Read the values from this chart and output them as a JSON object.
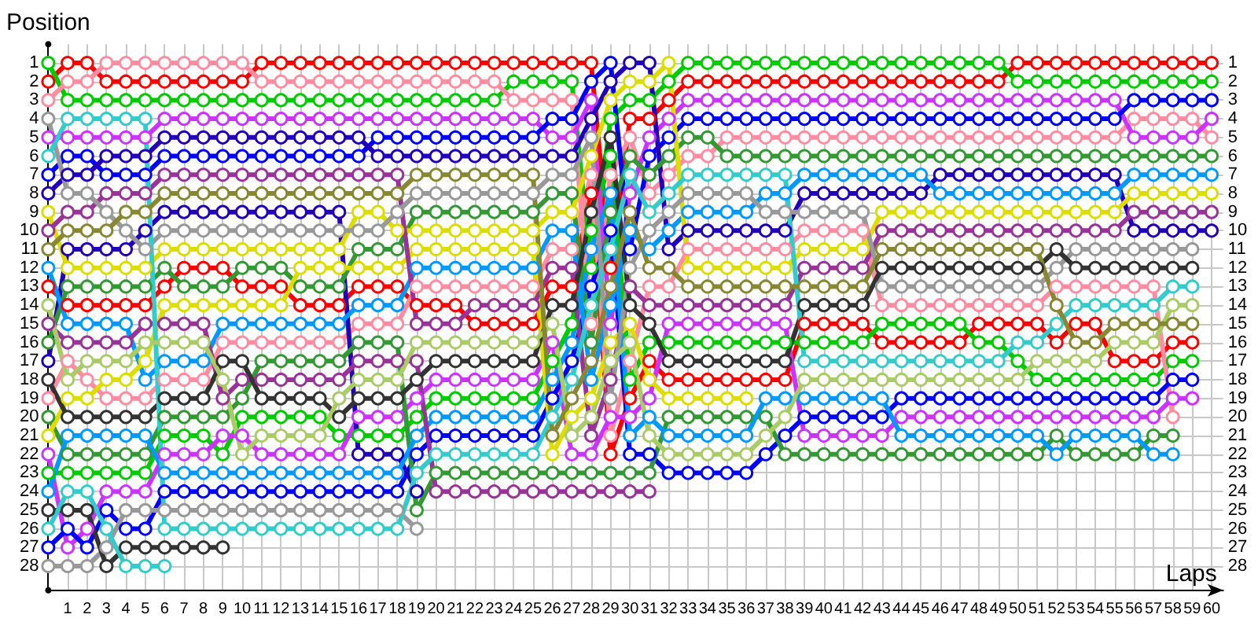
{
  "chart_data": {
    "type": "line",
    "xlabel": "Laps",
    "ylabel": "Position",
    "x": [
      0,
      1,
      2,
      3,
      4,
      5,
      6,
      7,
      8,
      9,
      10,
      11,
      12,
      13,
      14,
      15,
      16,
      17,
      18,
      19,
      20,
      21,
      22,
      23,
      24,
      25,
      26,
      27,
      28,
      29,
      30,
      31,
      32,
      33,
      34,
      35,
      36,
      37,
      38,
      39,
      40,
      41,
      42,
      43,
      44,
      45,
      46,
      47,
      48,
      49,
      50,
      51,
      52,
      53,
      54,
      55,
      56,
      57,
      58,
      59,
      60
    ],
    "series": [
      {
        "color": "#ff0000",
        "values": [
          2,
          1,
          1,
          2,
          2,
          2,
          2,
          2,
          2,
          2,
          2,
          1,
          1,
          1,
          1,
          1,
          1,
          1,
          1,
          1,
          1,
          1,
          1,
          1,
          1,
          1,
          1,
          1,
          1,
          12,
          4,
          4,
          3,
          2,
          2,
          2,
          2,
          2,
          2,
          2,
          2,
          2,
          2,
          2,
          2,
          2,
          2,
          2,
          2,
          2,
          1,
          1,
          1,
          1,
          1,
          1,
          1,
          1,
          1,
          1,
          1
        ]
      },
      {
        "color": "#ff0000",
        "values": [
          13,
          14,
          14,
          14,
          14,
          14,
          13,
          12,
          12,
          12,
          13,
          13,
          13,
          14,
          14,
          14,
          13,
          13,
          13,
          14,
          14,
          14,
          15,
          15,
          15,
          15,
          13,
          13,
          8,
          22,
          19,
          17,
          18,
          18,
          18,
          18,
          18,
          18,
          18,
          15,
          15,
          15,
          15,
          16,
          16,
          16,
          16,
          16,
          15,
          15,
          15,
          15,
          16,
          15,
          15,
          17,
          17,
          17,
          16,
          16,
          null
        ]
      },
      {
        "color": "#00cc00",
        "values": [
          1,
          3,
          3,
          3,
          3,
          3,
          3,
          3,
          3,
          3,
          3,
          3,
          3,
          3,
          3,
          3,
          3,
          3,
          3,
          3,
          3,
          3,
          3,
          3,
          2,
          2,
          2,
          2,
          12,
          4,
          3,
          3,
          2,
          1,
          1,
          1,
          1,
          1,
          1,
          1,
          1,
          1,
          1,
          1,
          1,
          1,
          1,
          1,
          1,
          1,
          2,
          2,
          2,
          2,
          2,
          2,
          2,
          2,
          2,
          2,
          2
        ]
      },
      {
        "color": "#00cc00",
        "values": [
          23,
          23,
          23,
          23,
          23,
          23,
          21,
          21,
          21,
          22,
          20,
          20,
          20,
          20,
          20,
          21,
          21,
          21,
          21,
          20,
          19,
          19,
          19,
          19,
          19,
          19,
          17,
          15,
          10,
          6,
          18,
          16,
          16,
          16,
          16,
          16,
          16,
          16,
          16,
          16,
          16,
          16,
          16,
          15,
          15,
          15,
          15,
          15,
          16,
          16,
          17,
          18,
          18,
          18,
          18,
          18,
          18,
          18,
          17,
          17,
          null
        ]
      },
      {
        "color": "#ff8ca0",
        "values": [
          3,
          2,
          2,
          1,
          1,
          1,
          1,
          1,
          1,
          1,
          1,
          2,
          2,
          2,
          2,
          2,
          2,
          2,
          2,
          2,
          2,
          2,
          2,
          2,
          3,
          3,
          3,
          3,
          15,
          7,
          5,
          8,
          7,
          6,
          6,
          5,
          5,
          5,
          5,
          5,
          5,
          5,
          5,
          5,
          5,
          5,
          5,
          5,
          5,
          5,
          5,
          5,
          5,
          5,
          5,
          5,
          4,
          4,
          4,
          4,
          5
        ]
      },
      {
        "color": "#ff8ca0",
        "values": [
          19,
          17,
          18,
          19,
          19,
          19,
          18,
          18,
          18,
          16,
          16,
          16,
          16,
          16,
          16,
          16,
          15,
          15,
          15,
          13,
          13,
          13,
          13,
          13,
          13,
          13,
          11,
          11,
          7,
          21,
          17,
          13,
          13,
          11,
          11,
          11,
          11,
          11,
          11,
          10,
          10,
          10,
          10,
          14,
          14,
          14,
          14,
          14,
          14,
          14,
          14,
          14,
          13,
          13,
          13,
          13,
          13,
          13,
          20,
          null,
          null
        ]
      },
      {
        "color": "#cc33ff",
        "values": [
          5,
          5,
          5,
          5,
          5,
          5,
          4,
          4,
          4,
          4,
          4,
          4,
          4,
          4,
          4,
          4,
          4,
          4,
          4,
          4,
          4,
          4,
          4,
          4,
          4,
          4,
          5,
          5,
          3,
          15,
          8,
          5,
          4,
          3,
          3,
          3,
          3,
          3,
          3,
          3,
          3,
          3,
          3,
          3,
          3,
          3,
          3,
          3,
          3,
          3,
          3,
          3,
          3,
          3,
          3,
          3,
          5,
          5,
          5,
          5,
          4
        ]
      },
      {
        "color": "#cc33ff",
        "values": [
          22,
          27,
          26,
          24,
          24,
          24,
          22,
          22,
          22,
          21,
          21,
          22,
          22,
          22,
          22,
          22,
          20,
          20,
          20,
          19,
          18,
          18,
          18,
          18,
          18,
          18,
          16,
          22,
          22,
          20,
          20,
          19,
          15,
          15,
          15,
          15,
          15,
          15,
          15,
          21,
          21,
          21,
          21,
          21,
          20,
          20,
          20,
          20,
          20,
          20,
          20,
          20,
          20,
          20,
          20,
          20,
          20,
          20,
          19,
          19,
          null
        ]
      },
      {
        "color": "#0000ff",
        "values": [
          7,
          6,
          6,
          7,
          7,
          7,
          6,
          6,
          6,
          6,
          6,
          6,
          6,
          6,
          6,
          6,
          6,
          5,
          5,
          5,
          5,
          5,
          5,
          5,
          5,
          5,
          4,
          4,
          2,
          1,
          11,
          6,
          5,
          4,
          4,
          4,
          4,
          4,
          4,
          4,
          4,
          4,
          4,
          4,
          4,
          4,
          4,
          4,
          4,
          4,
          4,
          4,
          4,
          4,
          4,
          4,
          3,
          3,
          3,
          3,
          3
        ]
      },
      {
        "color": "#0000ff",
        "values": [
          27,
          26,
          27,
          25,
          26,
          26,
          24,
          24,
          24,
          24,
          24,
          24,
          24,
          24,
          24,
          24,
          24,
          24,
          24,
          22,
          21,
          21,
          21,
          21,
          21,
          21,
          19,
          17,
          13,
          10,
          22,
          22,
          23,
          23,
          23,
          23,
          23,
          22,
          21,
          20,
          20,
          20,
          20,
          20,
          19,
          19,
          19,
          19,
          19,
          19,
          19,
          19,
          19,
          19,
          19,
          19,
          19,
          19,
          18,
          18,
          null
        ]
      },
      {
        "color": "#2200bb",
        "values": [
          8,
          7,
          7,
          6,
          6,
          6,
          5,
          5,
          5,
          5,
          5,
          5,
          5,
          5,
          5,
          5,
          5,
          6,
          6,
          6,
          6,
          6,
          6,
          6,
          6,
          6,
          6,
          6,
          4,
          2,
          1,
          1,
          11,
          10,
          10,
          10,
          10,
          10,
          10,
          8,
          8,
          8,
          8,
          8,
          8,
          8,
          7,
          7,
          7,
          7,
          7,
          7,
          7,
          7,
          7,
          7,
          10,
          10,
          10,
          10,
          10
        ]
      },
      {
        "color": "#2200bb",
        "values": [
          17,
          11,
          11,
          11,
          11,
          10,
          9,
          9,
          9,
          9,
          9,
          9,
          9,
          9,
          9,
          9,
          22,
          22,
          22,
          24,
          null,
          null,
          null,
          null,
          null,
          null,
          null,
          null,
          null,
          null,
          null,
          null,
          null,
          null,
          null,
          null,
          null,
          null,
          null,
          null,
          null,
          null,
          null,
          null,
          null,
          null,
          null,
          null,
          null,
          null,
          null,
          null,
          null,
          null,
          null,
          null,
          null,
          null,
          null,
          null,
          null
        ]
      },
      {
        "color": "#339933",
        "values": [
          16,
          13,
          13,
          13,
          13,
          13,
          12,
          13,
          13,
          13,
          12,
          12,
          12,
          13,
          13,
          13,
          11,
          11,
          11,
          9,
          9,
          9,
          9,
          9,
          9,
          9,
          8,
          8,
          16,
          9,
          6,
          7,
          6,
          5,
          5,
          6,
          6,
          6,
          6,
          6,
          6,
          6,
          6,
          6,
          6,
          6,
          6,
          6,
          6,
          6,
          6,
          6,
          6,
          6,
          6,
          6,
          6,
          6,
          6,
          6,
          6
        ]
      },
      {
        "color": "#339933",
        "values": [
          20,
          22,
          22,
          22,
          22,
          22,
          20,
          20,
          20,
          20,
          19,
          17,
          17,
          17,
          17,
          17,
          16,
          16,
          16,
          25,
          23,
          23,
          23,
          23,
          23,
          23,
          23,
          23,
          23,
          23,
          23,
          23,
          20,
          20,
          20,
          20,
          20,
          20,
          22,
          22,
          22,
          22,
          22,
          22,
          22,
          22,
          22,
          22,
          22,
          22,
          22,
          22,
          21,
          22,
          22,
          22,
          22,
          21,
          21,
          null,
          null
        ]
      },
      {
        "color": "#0099ff",
        "values": [
          12,
          15,
          15,
          15,
          15,
          18,
          17,
          17,
          17,
          15,
          15,
          15,
          15,
          15,
          15,
          15,
          14,
          14,
          14,
          12,
          12,
          12,
          12,
          12,
          12,
          12,
          10,
          10,
          18,
          14,
          10,
          11,
          10,
          9,
          9,
          9,
          9,
          8,
          8,
          7,
          7,
          7,
          7,
          7,
          7,
          7,
          8,
          8,
          8,
          8,
          8,
          8,
          8,
          8,
          8,
          8,
          7,
          7,
          7,
          7,
          7
        ]
      },
      {
        "color": "#0099ff",
        "values": [
          24,
          21,
          21,
          21,
          21,
          21,
          23,
          23,
          23,
          23,
          23,
          23,
          23,
          23,
          23,
          23,
          23,
          23,
          23,
          21,
          20,
          20,
          20,
          20,
          20,
          20,
          18,
          16,
          11,
          8,
          21,
          20,
          21,
          21,
          21,
          21,
          21,
          19,
          19,
          19,
          19,
          19,
          19,
          19,
          21,
          21,
          21,
          21,
          21,
          21,
          21,
          21,
          22,
          21,
          21,
          21,
          21,
          22,
          22,
          null,
          null
        ]
      },
      {
        "color": "#dddd00",
        "values": [
          9,
          12,
          12,
          12,
          12,
          12,
          11,
          11,
          11,
          11,
          11,
          11,
          11,
          11,
          11,
          11,
          9,
          9,
          10,
          10,
          10,
          10,
          10,
          10,
          10,
          10,
          9,
          9,
          6,
          3,
          2,
          2,
          1,
          12,
          12,
          12,
          12,
          12,
          12,
          11,
          11,
          11,
          11,
          9,
          9,
          9,
          9,
          9,
          9,
          9,
          9,
          9,
          9,
          9,
          9,
          9,
          8,
          8,
          8,
          8,
          8
        ]
      },
      {
        "color": "#dddd00",
        "values": [
          21,
          19,
          19,
          18,
          18,
          17,
          14,
          14,
          14,
          14,
          14,
          14,
          14,
          12,
          12,
          12,
          12,
          12,
          12,
          11,
          11,
          11,
          11,
          11,
          11,
          11,
          22,
          20,
          19,
          16,
          15,
          18,
          19,
          19,
          19,
          19,
          19,
          null,
          null,
          null,
          null,
          null,
          null,
          null,
          null,
          null,
          null,
          null,
          null,
          null,
          null,
          null,
          null,
          null,
          null,
          null,
          null,
          null,
          null,
          null,
          null
        ]
      },
      {
        "color": "#993399",
        "values": [
          10,
          9,
          9,
          8,
          8,
          8,
          7,
          7,
          7,
          7,
          7,
          7,
          7,
          7,
          7,
          7,
          7,
          7,
          7,
          15,
          15,
          15,
          14,
          14,
          14,
          14,
          12,
          12,
          21,
          18,
          13,
          14,
          14,
          14,
          14,
          14,
          14,
          14,
          14,
          12,
          12,
          12,
          12,
          10,
          10,
          10,
          10,
          10,
          10,
          10,
          10,
          10,
          10,
          10,
          10,
          10,
          9,
          9,
          9,
          9,
          9
        ]
      },
      {
        "color": "#993399",
        "values": [
          15,
          16,
          16,
          16,
          16,
          15,
          15,
          15,
          15,
          19,
          18,
          18,
          18,
          18,
          18,
          18,
          17,
          17,
          17,
          17,
          24,
          24,
          24,
          24,
          24,
          24,
          24,
          24,
          24,
          24,
          24,
          24,
          null,
          null,
          null,
          null,
          null,
          null,
          null,
          null,
          null,
          null,
          null,
          null,
          null,
          null,
          null,
          null,
          null,
          null,
          null,
          null,
          null,
          null,
          null,
          null,
          null,
          null,
          null,
          null,
          null
        ]
      },
      {
        "color": "#999999",
        "values": [
          4,
          8,
          8,
          9,
          10,
          11,
          10,
          10,
          10,
          10,
          10,
          10,
          10,
          10,
          10,
          10,
          10,
          10,
          9,
          8,
          8,
          8,
          8,
          8,
          8,
          8,
          7,
          7,
          5,
          19,
          12,
          10,
          9,
          8,
          8,
          8,
          8,
          9,
          9,
          9,
          9,
          9,
          9,
          13,
          13,
          13,
          13,
          13,
          13,
          13,
          13,
          13,
          12,
          11,
          11,
          11,
          11,
          11,
          11,
          11,
          null
        ]
      },
      {
        "color": "#999999",
        "values": [
          28,
          28,
          28,
          27,
          25,
          25,
          25,
          25,
          25,
          25,
          25,
          25,
          25,
          25,
          25,
          25,
          25,
          25,
          25,
          26,
          null,
          null,
          null,
          null,
          null,
          null,
          null,
          null,
          null,
          null,
          null,
          null,
          null,
          null,
          null,
          null,
          null,
          null,
          null,
          null,
          null,
          null,
          null,
          null,
          null,
          null,
          null,
          null,
          null,
          null,
          null,
          null,
          null,
          null,
          null,
          null,
          null,
          null,
          null,
          null,
          null
        ]
      },
      {
        "color": "#333333",
        "values": [
          18,
          20,
          20,
          20,
          20,
          20,
          19,
          19,
          19,
          17,
          17,
          19,
          19,
          19,
          19,
          20,
          19,
          19,
          19,
          18,
          17,
          17,
          17,
          17,
          17,
          17,
          14,
          14,
          9,
          5,
          14,
          15,
          17,
          17,
          17,
          17,
          17,
          17,
          17,
          14,
          14,
          14,
          14,
          12,
          12,
          12,
          12,
          12,
          12,
          12,
          12,
          12,
          11,
          12,
          12,
          12,
          12,
          12,
          12,
          12,
          null
        ]
      },
      {
        "color": "#333333",
        "values": [
          25,
          25,
          25,
          28,
          27,
          27,
          27,
          27,
          27,
          27,
          null,
          null,
          null,
          null,
          null,
          null,
          null,
          null,
          null,
          null,
          null,
          null,
          null,
          null,
          null,
          null,
          null,
          null,
          null,
          null,
          null,
          null,
          null,
          null,
          null,
          null,
          null,
          null,
          null,
          null,
          null,
          null,
          null,
          null,
          null,
          null,
          null,
          null,
          null,
          null,
          null,
          null,
          null,
          null,
          null,
          null,
          null,
          null,
          null,
          null,
          null
        ]
      },
      {
        "color": "#33cccc",
        "values": [
          6,
          4,
          4,
          4,
          4,
          4,
          26,
          26,
          26,
          26,
          26,
          26,
          26,
          26,
          26,
          26,
          26,
          26,
          26,
          23,
          22,
          22,
          22,
          22,
          22,
          22,
          20,
          18,
          14,
          11,
          7,
          9,
          8,
          7,
          7,
          7,
          7,
          7,
          7,
          17,
          17,
          17,
          17,
          17,
          17,
          17,
          17,
          17,
          17,
          17,
          16,
          16,
          15,
          14,
          14,
          14,
          14,
          14,
          13,
          13,
          null
        ]
      },
      {
        "color": "#33cccc",
        "values": [
          26,
          24,
          24,
          26,
          28,
          28,
          28,
          null,
          null,
          null,
          null,
          null,
          null,
          null,
          null,
          null,
          null,
          null,
          null,
          null,
          null,
          null,
          null,
          null,
          null,
          null,
          null,
          null,
          null,
          null,
          null,
          null,
          null,
          null,
          null,
          null,
          null,
          null,
          null,
          null,
          null,
          null,
          null,
          null,
          null,
          null,
          null,
          null,
          null,
          null,
          null,
          null,
          null,
          null,
          null,
          null,
          null,
          null,
          null,
          null,
          null
        ]
      },
      {
        "color": "#aacc66",
        "values": [
          14,
          18,
          17,
          17,
          17,
          16,
          16,
          16,
          16,
          18,
          22,
          21,
          21,
          21,
          21,
          19,
          18,
          18,
          18,
          16,
          16,
          16,
          16,
          16,
          16,
          16,
          15,
          21,
          20,
          17,
          16,
          21,
          22,
          22,
          22,
          22,
          22,
          21,
          20,
          18,
          18,
          18,
          18,
          18,
          18,
          18,
          18,
          18,
          18,
          18,
          18,
          17,
          17,
          17,
          17,
          16,
          16,
          16,
          14,
          14,
          null
        ]
      },
      {
        "color": "#888833",
        "values": [
          11,
          10,
          10,
          10,
          9,
          9,
          8,
          8,
          8,
          8,
          8,
          8,
          8,
          8,
          8,
          8,
          8,
          8,
          8,
          7,
          7,
          7,
          7,
          7,
          7,
          7,
          21,
          19,
          17,
          13,
          9,
          12,
          12,
          13,
          13,
          13,
          13,
          13,
          13,
          13,
          13,
          13,
          13,
          11,
          11,
          11,
          11,
          11,
          11,
          11,
          11,
          11,
          14,
          16,
          16,
          15,
          15,
          15,
          15,
          15,
          null
        ]
      }
    ],
    "xlim": [
      0,
      60.6
    ],
    "xticks": [
      1,
      2,
      3,
      4,
      5,
      6,
      7,
      8,
      9,
      10,
      11,
      12,
      13,
      14,
      15,
      16,
      17,
      18,
      19,
      20,
      21,
      22,
      23,
      24,
      25,
      26,
      27,
      28,
      29,
      30,
      31,
      32,
      33,
      34,
      35,
      36,
      37,
      38,
      39,
      40,
      41,
      42,
      43,
      44,
      45,
      46,
      47,
      48,
      49,
      50,
      51,
      52,
      53,
      54,
      55,
      56,
      57,
      58,
      59,
      60
    ],
    "ylim": [
      29.3,
      0
    ],
    "yticks": [
      1,
      2,
      3,
      4,
      5,
      6,
      7,
      8,
      9,
      10,
      11,
      12,
      13,
      14,
      15,
      16,
      17,
      18,
      19,
      20,
      21,
      22,
      23,
      24,
      25,
      26,
      27,
      28
    ],
    "y2lim": [
      29.3,
      0
    ],
    "y2ticks": [
      1,
      2,
      3,
      4,
      5,
      6,
      7,
      8,
      9,
      10,
      11,
      12,
      13,
      14,
      15,
      16,
      17,
      18,
      19,
      20,
      21,
      22,
      23,
      24,
      25,
      26,
      27,
      28
    ],
    "grid": true,
    "marker": "circle",
    "line_style": "solid"
  }
}
